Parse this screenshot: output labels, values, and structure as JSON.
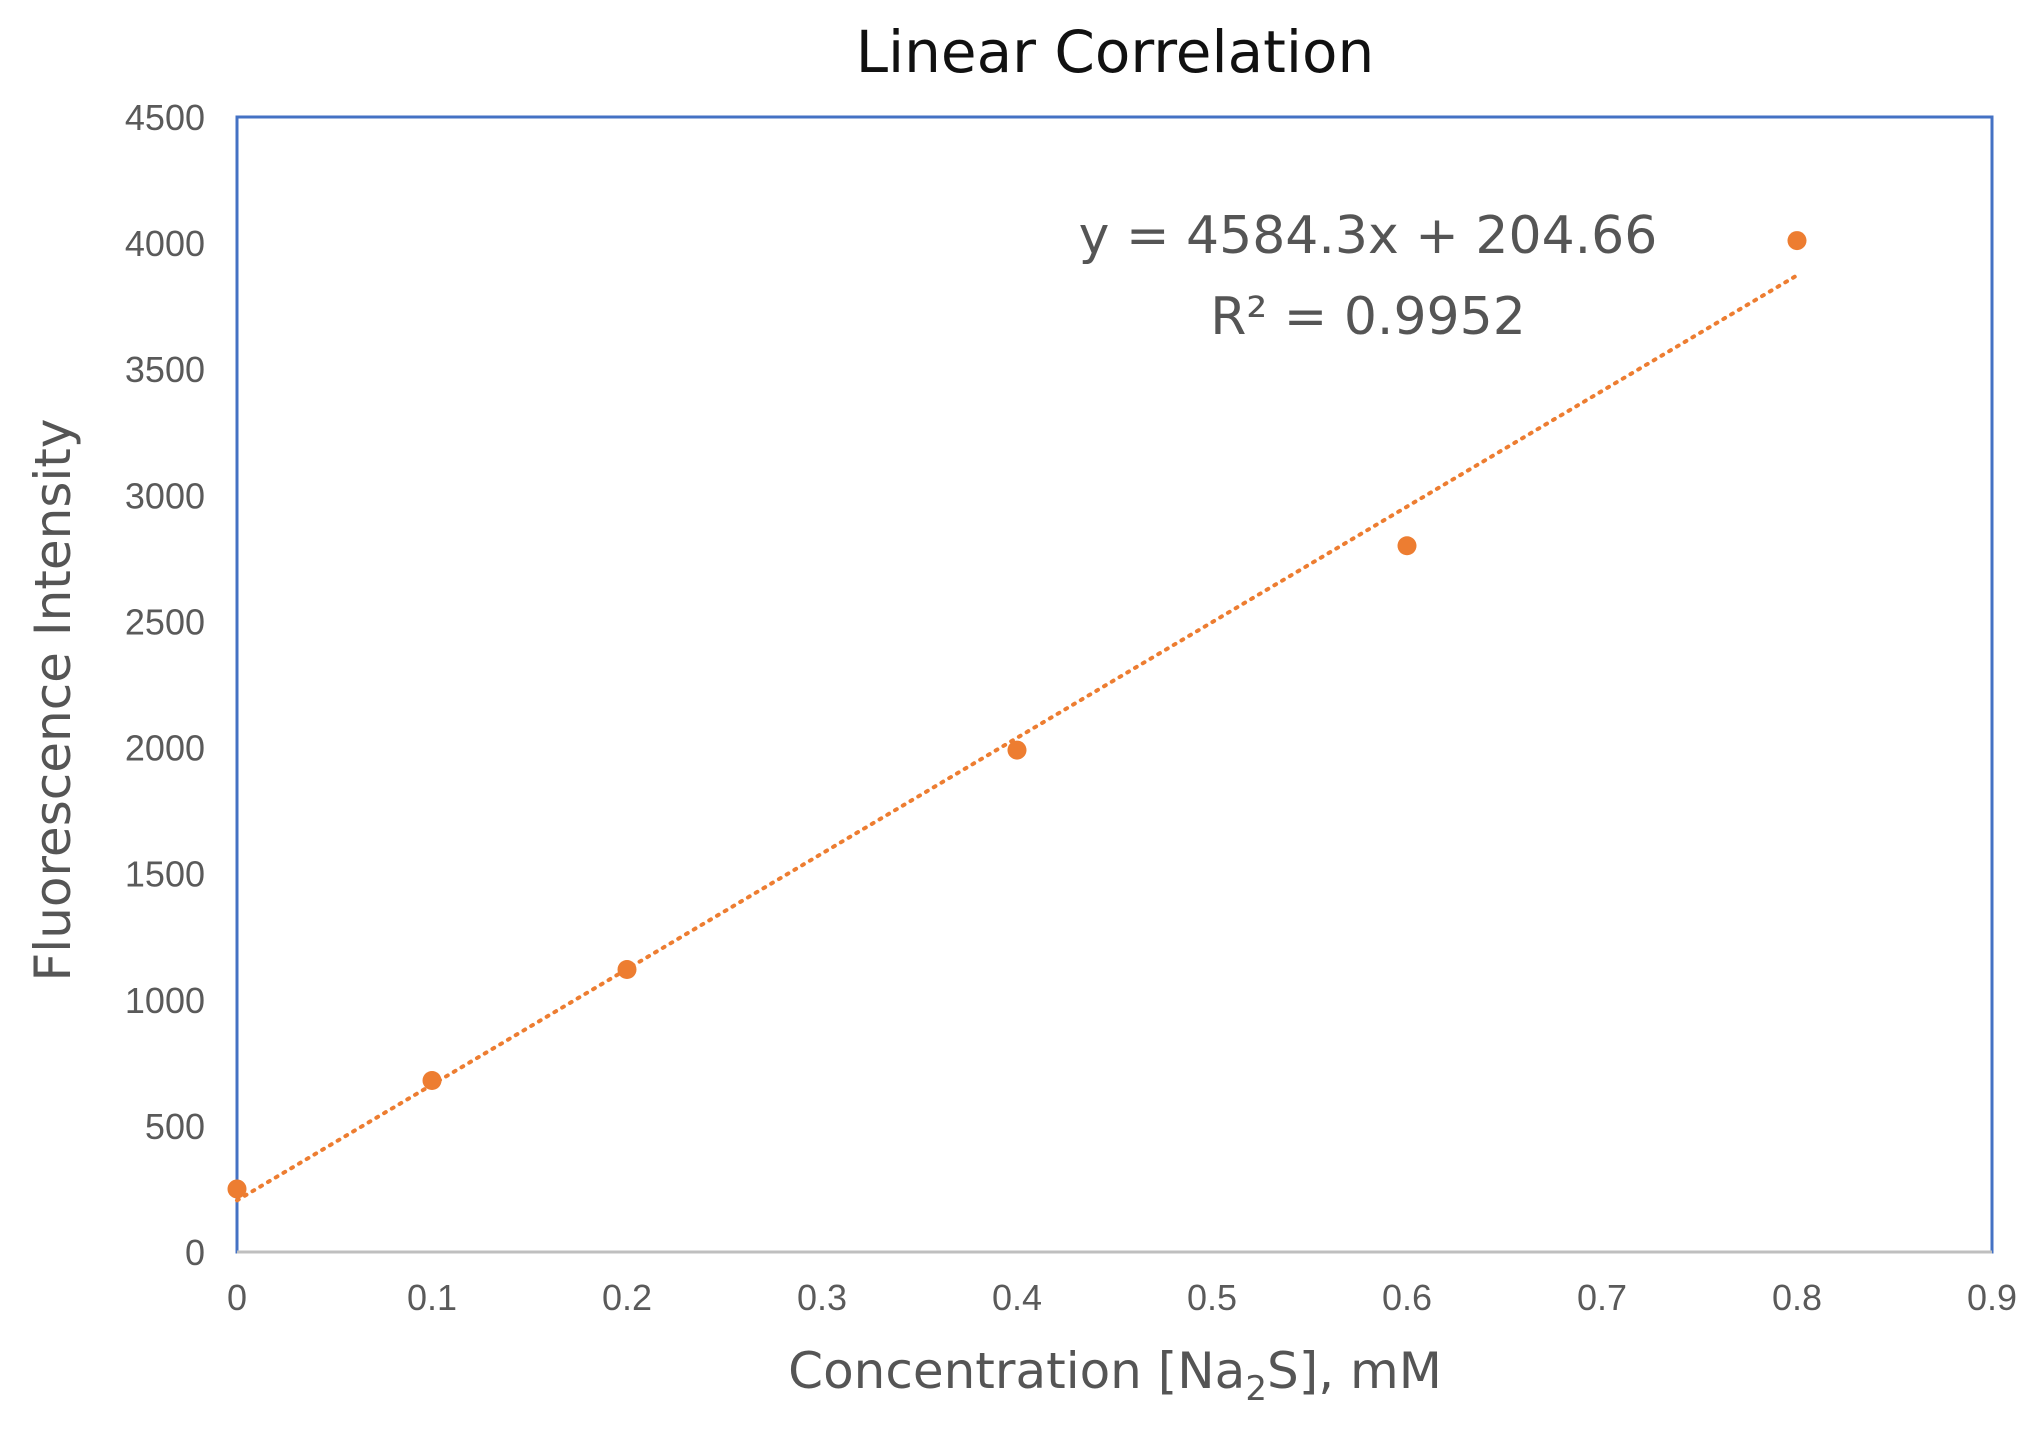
{
  "chart_data": {
    "type": "scatter",
    "title": "Linear Correlation",
    "xlabel": {
      "prefix": "Concentration [Na",
      "subscript": "2",
      "suffix": "S], mM"
    },
    "ylabel": "Fluorescence Intensity",
    "xlim": [
      0,
      0.9
    ],
    "ylim": [
      0,
      4500
    ],
    "xticks": [
      "0",
      "0.1",
      "0.2",
      "0.3",
      "0.4",
      "0.5",
      "0.6",
      "0.7",
      "0.8",
      "0.9"
    ],
    "yticks": [
      "0",
      "500",
      "1000",
      "1500",
      "2000",
      "2500",
      "3000",
      "3500",
      "4000",
      "4500"
    ],
    "grid": false,
    "legend": "none",
    "series": [
      {
        "x": [
          0,
          0.1,
          0.2,
          0.4,
          0.6,
          0.8
        ],
        "y": [
          250,
          680,
          1120,
          1990,
          2800,
          4010
        ],
        "color": "#ED7D31"
      }
    ],
    "trendline": {
      "type": "linear",
      "slope": 4584.3,
      "intercept": 204.66,
      "x_range": [
        0,
        0.8
      ],
      "style": "dotted",
      "color": "#ED7D31",
      "equation": "y = 4584.3x + 204.66",
      "r_squared": "R² = 0.9952"
    },
    "plot_border_color": "#4472C4",
    "axis_color": "#bfbfbf"
  }
}
